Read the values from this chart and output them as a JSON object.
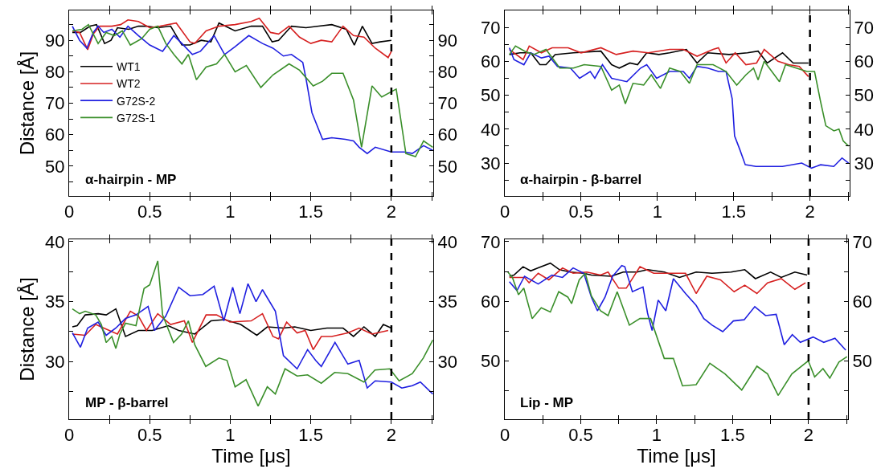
{
  "chart_data": [
    {
      "type": "line",
      "ylabel": "Distance [Å]",
      "annotations": [
        "α-hairpin - MP"
      ],
      "legend": "left",
      "grid": false,
      "xlim": [
        0,
        2.26
      ],
      "xticks": [
        0,
        {
          "value": 0.25,
          "label": null
        },
        0.5,
        {
          "value": 0.75,
          "label": null
        },
        1,
        {
          "value": 1.25,
          "label": null
        },
        1.5,
        {
          "value": 1.75,
          "label": null
        },
        2,
        {
          "value": 2.25,
          "label": null
        }
      ],
      "ylim": [
        40.5,
        99.5
      ],
      "yticks": [
        {
          "value": 45,
          "label": null
        },
        50,
        {
          "value": 55,
          "label": null
        },
        60,
        {
          "value": 65,
          "label": null
        },
        70,
        {
          "value": 75,
          "label": null
        },
        80,
        {
          "value": 85,
          "label": null
        },
        90,
        {
          "value": 95,
          "label": null
        }
      ],
      "y2lim": [
        40.5,
        99.5
      ],
      "y2ticks": [
        {
          "value": 45,
          "label": null
        },
        50,
        {
          "value": 55,
          "label": null
        },
        60,
        {
          "value": 65,
          "label": null
        },
        70,
        {
          "value": 75,
          "label": null
        },
        80,
        {
          "value": 85,
          "label": null
        },
        90,
        {
          "value": 95,
          "label": null
        }
      ],
      "ref_lines": [
        {
          "axis": "x",
          "value": 2,
          "color": "#000000",
          "line_style": "dashed"
        }
      ],
      "series": [
        {
          "name": "WT1",
          "color": "#000000",
          "x": [
            0.02,
            0.07,
            0.13,
            0.17,
            0.22,
            0.26,
            0.3,
            0.37,
            0.43,
            0.48,
            0.55,
            0.63,
            0.7,
            0.75,
            0.82,
            0.88,
            0.93,
            1.03,
            1.13,
            1.2,
            1.26,
            1.3,
            1.38,
            1.47,
            1.55,
            1.63,
            1.72,
            1.77,
            1.82,
            1.88,
            1.93,
            2.0
          ],
          "values": [
            92.5,
            92.5,
            94.5,
            95,
            89,
            90,
            94,
            93.5,
            94.5,
            94.5,
            94,
            94.5,
            88.5,
            88.5,
            90,
            89.5,
            95.5,
            93,
            94.5,
            94.5,
            89.5,
            90,
            94.5,
            94,
            94.5,
            95,
            93.5,
            88.5,
            94.5,
            89,
            89.5,
            90
          ]
        },
        {
          "name": "WT2",
          "color": "#d62020",
          "x": [
            0.02,
            0.065,
            0.115,
            0.15,
            0.19,
            0.265,
            0.32,
            0.365,
            0.43,
            0.5,
            0.565,
            0.665,
            0.75,
            0.78,
            0.85,
            0.93,
            1.03,
            1.13,
            1.18,
            1.25,
            1.3,
            1.365,
            1.43,
            1.5,
            1.565,
            1.63,
            1.7,
            1.765,
            1.83,
            1.9,
            1.98,
            2.0
          ],
          "values": [
            93,
            92.5,
            87,
            92,
            94.5,
            94.5,
            95,
            96.5,
            96,
            94,
            94.5,
            95.5,
            89.5,
            89,
            93,
            94.5,
            95,
            96,
            97,
            92.5,
            92,
            94.5,
            91,
            89,
            90,
            89.5,
            94.5,
            91.5,
            91,
            87.5,
            84.5,
            86.5
          ]
        },
        {
          "name": "G72S-2",
          "color": "#1f1fe0",
          "x": [
            0.02,
            0.065,
            0.11,
            0.15,
            0.18,
            0.215,
            0.265,
            0.315,
            0.365,
            0.43,
            0.5,
            0.58,
            0.65,
            0.7,
            0.765,
            0.815,
            0.9,
            0.965,
            1.03,
            1.115,
            1.2,
            1.265,
            1.33,
            1.38,
            1.45,
            1.473,
            1.507,
            1.573,
            1.63,
            1.715,
            1.765,
            1.8,
            1.85,
            1.9,
            2.0,
            2.08,
            2.13,
            2.2,
            2.257
          ],
          "values": [
            94.5,
            90,
            87.5,
            92.5,
            94.5,
            92.5,
            93.5,
            91,
            94.5,
            91.5,
            88.5,
            86.5,
            91.5,
            89,
            85.5,
            86.5,
            91.5,
            85.5,
            88,
            91.5,
            89,
            87.5,
            85,
            85.5,
            83,
            77,
            67,
            58.5,
            59,
            58.5,
            58,
            56,
            54,
            56,
            54.5,
            54.5,
            54,
            56.5,
            55
          ]
        },
        {
          "name": "G72S-1",
          "color": "#3a8f2a",
          "x": [
            0.02,
            0.08,
            0.12,
            0.18,
            0.23,
            0.28,
            0.33,
            0.38,
            0.45,
            0.5,
            0.55,
            0.6,
            0.65,
            0.7,
            0.74,
            0.79,
            0.85,
            0.915,
            0.965,
            1.03,
            1.1,
            1.19,
            1.265,
            1.365,
            1.43,
            1.515,
            1.573,
            1.63,
            1.7,
            1.765,
            1.815,
            1.88,
            1.94,
            2.03,
            2.09,
            2.15,
            2.2,
            2.257
          ],
          "values": [
            93,
            93.5,
            95,
            89,
            92.5,
            91.5,
            93,
            88.5,
            90.5,
            93.5,
            94.5,
            89,
            85.5,
            82.5,
            85.5,
            77.5,
            81.5,
            82.5,
            85.5,
            80,
            82,
            75,
            79,
            82.5,
            80.5,
            75.5,
            77,
            79.5,
            79.5,
            71,
            56,
            75.5,
            72,
            74.5,
            54,
            53,
            58,
            56
          ]
        }
      ]
    },
    {
      "type": "line",
      "annotations": [
        "α-hairpin - β-barrel"
      ],
      "legend": false,
      "grid": false,
      "xlim": [
        0,
        2.26
      ],
      "xticks": [
        0,
        {
          "value": 0.25,
          "label": null
        },
        0.5,
        {
          "value": 0.75,
          "label": null
        },
        1,
        {
          "value": 1.25,
          "label": null
        },
        1.5,
        {
          "value": 1.75,
          "label": null
        },
        2,
        {
          "value": 2.25,
          "label": null
        }
      ],
      "ylim": [
        20.3,
        75
      ],
      "yticks": [
        {
          "value": 25,
          "label": null
        },
        30,
        {
          "value": 35,
          "label": null
        },
        40,
        {
          "value": 45,
          "label": null
        },
        50,
        {
          "value": 55,
          "label": null
        },
        60,
        {
          "value": 65,
          "label": null
        },
        70
      ],
      "y2lim": [
        20.3,
        75
      ],
      "y2ticks": [
        {
          "value": 25,
          "label": null
        },
        30,
        {
          "value": 35,
          "label": null
        },
        40,
        {
          "value": 45,
          "label": null
        },
        50,
        {
          "value": 55,
          "label": null
        },
        60,
        {
          "value": 65,
          "label": null
        },
        70
      ],
      "ref_lines": [
        {
          "axis": "x",
          "value": 2,
          "color": "#000000",
          "line_style": "dashed"
        }
      ],
      "series": [
        {
          "color": "#000000",
          "x": [
            0.03,
            0.1,
            0.17,
            0.23,
            0.27,
            0.33,
            0.45,
            0.63,
            0.7,
            0.75,
            0.82,
            0.87,
            0.93,
            1.01,
            1.08,
            1.19,
            1.26,
            1.33,
            1.47,
            1.59,
            1.66,
            1.72,
            1.82,
            1.89,
            1.99
          ],
          "values": [
            62,
            62.5,
            62.5,
            59,
            59,
            62,
            62.5,
            63,
            59,
            58,
            59.5,
            59,
            62.5,
            62,
            62.5,
            63.5,
            59.5,
            62.5,
            62,
            62.5,
            63,
            59.5,
            62.5,
            59.5,
            59.5
          ]
        },
        {
          "color": "#d62020",
          "x": [
            0.03,
            0.12,
            0.16,
            0.24,
            0.31,
            0.415,
            0.5,
            0.63,
            0.73,
            0.84,
            0.94,
            1.08,
            1.17,
            1.26,
            1.365,
            1.4,
            1.45,
            1.51,
            1.58,
            1.65,
            1.7,
            1.79,
            1.86,
            1.93,
            1.99
          ],
          "values": [
            63.5,
            60.5,
            64.5,
            62.5,
            64,
            64,
            62.5,
            64,
            62,
            63,
            62.5,
            63.5,
            63.5,
            61.5,
            63.5,
            64,
            59.5,
            62.5,
            59,
            59.5,
            63.5,
            60,
            59,
            58.5,
            55.5
          ]
        },
        {
          "color": "#1f1fe0",
          "x": [
            0.03,
            0.06,
            0.125,
            0.17,
            0.24,
            0.29,
            0.345,
            0.43,
            0.49,
            0.56,
            0.59,
            0.64,
            0.7,
            0.8,
            0.89,
            0.93,
            0.995,
            1.08,
            1.17,
            1.21,
            1.26,
            1.33,
            1.4,
            1.45,
            1.49,
            1.506,
            1.54,
            1.576,
            1.646,
            1.82,
            1.946,
            2.01,
            2.07,
            2.156,
            2.21,
            2.253
          ],
          "values": [
            64,
            60.5,
            59,
            62.5,
            61,
            61.5,
            58.5,
            58,
            55,
            57,
            55,
            59,
            55,
            54,
            58,
            59,
            55,
            57,
            57,
            55,
            58.5,
            58,
            57,
            57,
            49,
            38,
            34,
            29.5,
            29,
            29,
            30,
            28.5,
            29.5,
            29,
            31.5,
            30
          ]
        },
        {
          "color": "#3a8f2a",
          "x": [
            0.03,
            0.07,
            0.13,
            0.19,
            0.27,
            0.36,
            0.45,
            0.52,
            0.63,
            0.7,
            0.75,
            0.79,
            0.84,
            0.91,
            0.96,
            1.02,
            1.08,
            1.15,
            1.21,
            1.26,
            1.365,
            1.45,
            1.52,
            1.58,
            1.63,
            1.66,
            1.7,
            1.8,
            1.84,
            1.91,
            1.98,
            2.03,
            2.07,
            2.104,
            2.157,
            2.19,
            2.218,
            2.253
          ],
          "values": [
            62,
            64.5,
            63,
            62,
            63.5,
            58,
            58,
            59,
            58.5,
            51.5,
            53,
            47.5,
            53.5,
            53,
            56,
            52,
            58,
            57,
            53.5,
            59,
            59,
            57,
            53,
            56,
            58,
            54.5,
            60,
            54,
            59,
            58,
            57,
            57,
            48,
            41,
            39.5,
            40,
            36.5,
            35
          ]
        }
      ]
    },
    {
      "type": "line",
      "ylabel": "Distance [Å]",
      "xlabel": "Time [μs]",
      "annotations": [
        "MP - β-barrel"
      ],
      "legend": false,
      "grid": false,
      "xlim": [
        0,
        2.26
      ],
      "xticks": [
        0,
        {
          "value": 0.25,
          "label": null
        },
        0.5,
        {
          "value": 0.75,
          "label": null
        },
        1,
        {
          "value": 1.25,
          "label": null
        },
        1.5,
        {
          "value": 1.75,
          "label": null
        },
        2,
        {
          "value": 2.25,
          "label": null
        }
      ],
      "ylim": [
        25.2,
        40.2
      ],
      "yticks": [
        {
          "value": 27.5,
          "label": null
        },
        30,
        {
          "value": 32.5,
          "label": null
        },
        35,
        {
          "value": 37.5,
          "label": null
        },
        40
      ],
      "y2lim": [
        25.2,
        40.2
      ],
      "y2ticks": [
        {
          "value": 27.5,
          "label": null
        },
        30,
        {
          "value": 32.5,
          "label": null
        },
        35,
        {
          "value": 37.5,
          "label": null
        },
        40
      ],
      "ref_lines": [
        {
          "axis": "x",
          "value": 2,
          "color": "#000000",
          "line_style": "dashed"
        }
      ],
      "series": [
        {
          "color": "#000000",
          "x": [
            0.02,
            0.05,
            0.1,
            0.18,
            0.23,
            0.29,
            0.35,
            0.43,
            0.515,
            0.615,
            0.68,
            0.78,
            0.88,
            0.965,
            1.065,
            1.165,
            1.23,
            1.33,
            1.4,
            1.5,
            1.6,
            1.7,
            1.765,
            1.83,
            1.9,
            1.95,
            2.0
          ],
          "values": [
            32.9,
            33,
            33.9,
            34,
            33.9,
            34.4,
            32.1,
            32.6,
            32.6,
            33,
            32.6,
            32.3,
            33.4,
            33.5,
            33.1,
            32.2,
            32.9,
            32.8,
            32.9,
            32.6,
            32.8,
            32.8,
            32.1,
            32.9,
            32.1,
            33.1,
            32.8
          ]
        },
        {
          "color": "#d62020",
          "x": [
            0.02,
            0.1,
            0.165,
            0.215,
            0.3,
            0.38,
            0.43,
            0.48,
            0.55,
            0.63,
            0.715,
            0.765,
            0.85,
            0.915,
            0.998,
            1.13,
            1.2,
            1.265,
            1.3,
            1.35,
            1.415,
            1.465,
            1.515,
            1.565,
            1.63,
            1.73,
            1.8,
            1.88,
            1.98
          ],
          "values": [
            32.3,
            32.2,
            33.1,
            32.8,
            32.3,
            34.2,
            33.8,
            32.6,
            34,
            33.1,
            33.4,
            31.6,
            33.9,
            33.9,
            33.3,
            33.4,
            34,
            32.1,
            31.9,
            33.3,
            32.4,
            32.6,
            31,
            32.1,
            32.1,
            32.4,
            32.8,
            32.3,
            32.6
          ]
        },
        {
          "color": "#1f1fe0",
          "x": [
            0.02,
            0.07,
            0.115,
            0.18,
            0.23,
            0.29,
            0.35,
            0.415,
            0.49,
            0.53,
            0.6,
            0.68,
            0.75,
            0.83,
            0.9,
            0.96,
            1.015,
            1.06,
            1.11,
            1.16,
            1.2,
            1.28,
            1.33,
            1.415,
            1.48,
            1.53,
            1.565,
            1.65,
            1.73,
            1.8,
            1.85,
            1.9,
            2.0,
            2.065,
            2.13,
            2.18,
            2.257
          ],
          "values": [
            32.4,
            31.2,
            32.8,
            33.3,
            32.2,
            32.8,
            33.6,
            33.9,
            34.6,
            32.6,
            33.8,
            36.2,
            35.5,
            35.6,
            36.3,
            33.4,
            36.2,
            34,
            36.5,
            35,
            36,
            34.2,
            30.5,
            29.4,
            31,
            30.1,
            29.6,
            31.6,
            29.8,
            30.1,
            27.8,
            28.4,
            28.3,
            27.8,
            28,
            28.3,
            27.3
          ]
        },
        {
          "color": "#3a8f2a",
          "x": [
            0.02,
            0.065,
            0.1,
            0.165,
            0.2,
            0.23,
            0.265,
            0.29,
            0.315,
            0.35,
            0.415,
            0.465,
            0.5,
            0.55,
            0.58,
            0.648,
            0.698,
            0.74,
            0.78,
            0.848,
            0.93,
            0.98,
            1.03,
            1.098,
            1.173,
            1.23,
            1.28,
            1.34,
            1.415,
            1.48,
            1.565,
            1.648,
            1.73,
            1.83,
            1.898,
            1.99,
            2.048,
            2.13,
            2.198,
            2.257
          ],
          "values": [
            34.4,
            34,
            34.2,
            33.9,
            33.1,
            31.6,
            32.1,
            31.1,
            32.3,
            33.2,
            33,
            36.1,
            36.4,
            38.4,
            33.9,
            31.6,
            32.3,
            33.4,
            31.4,
            29.6,
            30.3,
            30.1,
            27.9,
            28.5,
            26.3,
            27.9,
            27.3,
            29.4,
            28.8,
            28.9,
            28.2,
            29.1,
            29,
            28.3,
            29.3,
            29.4,
            28.4,
            29,
            30.3,
            31.8
          ]
        }
      ]
    },
    {
      "type": "line",
      "xlabel": "Time [μs]",
      "annotations": [
        "Lip - MP"
      ],
      "legend": false,
      "grid": false,
      "xlim": [
        0,
        2.26
      ],
      "xticks": [
        0,
        {
          "value": 0.25,
          "label": null
        },
        0.5,
        {
          "value": 0.75,
          "label": null
        },
        1,
        {
          "value": 1.25,
          "label": null
        },
        1.5,
        {
          "value": 1.75,
          "label": null
        },
        2,
        {
          "value": 2.25,
          "label": null
        }
      ],
      "ylim": [
        40.2,
        70.4
      ],
      "yticks": [
        {
          "value": 45,
          "label": null
        },
        50,
        {
          "value": 55,
          "label": null
        },
        60,
        {
          "value": 65,
          "label": null
        },
        70
      ],
      "y2lim": [
        40.2,
        70.4
      ],
      "y2ticks": [
        {
          "value": 45,
          "label": null
        },
        50,
        {
          "value": 55,
          "label": null
        },
        60,
        {
          "value": 65,
          "label": null
        },
        70
      ],
      "ref_lines": [
        {
          "axis": "x",
          "value": 2,
          "color": "#000000",
          "line_style": "dashed"
        }
      ],
      "series": [
        {
          "color": "#000000",
          "x": [
            0.03,
            0.06,
            0.12,
            0.17,
            0.22,
            0.3,
            0.36,
            0.43,
            0.52,
            0.57,
            0.7,
            0.78,
            0.87,
            0.94,
            1.05,
            1.15,
            1.26,
            1.365,
            1.49,
            1.58,
            1.65,
            1.75,
            1.82,
            1.91,
            1.99
          ],
          "values": [
            64.2,
            64.4,
            65.8,
            65.1,
            65.6,
            66.4,
            65.3,
            64.9,
            64.7,
            64.4,
            64.2,
            64.9,
            64.9,
            65.3,
            64.9,
            64,
            64.9,
            64.7,
            64.9,
            65.3,
            63.8,
            64.9,
            64,
            64.9,
            64.4
          ]
        },
        {
          "color": "#d62020",
          "x": [
            0.03,
            0.13,
            0.16,
            0.22,
            0.29,
            0.38,
            0.45,
            0.54,
            0.63,
            0.68,
            0.75,
            0.8,
            0.89,
            0.98,
            1.05,
            1.19,
            1.26,
            1.33,
            1.42,
            1.51,
            1.58,
            1.66,
            1.73,
            1.82,
            1.91,
            1.98
          ],
          "values": [
            64,
            64,
            63.1,
            64.7,
            63.6,
            65.6,
            64.7,
            64.9,
            64.4,
            64.9,
            62.2,
            62.2,
            65.8,
            64.7,
            64.7,
            64.7,
            61.3,
            64.2,
            63.6,
            61.6,
            62.7,
            61.3,
            63.1,
            63.8,
            62,
            63.1
          ]
        },
        {
          "color": "#1f1fe0",
          "x": [
            0.03,
            0.08,
            0.13,
            0.22,
            0.31,
            0.38,
            0.45,
            0.52,
            0.57,
            0.61,
            0.66,
            0.71,
            0.77,
            0.79,
            0.84,
            0.91,
            0.94,
            0.97,
            1.01,
            1.06,
            1.11,
            1.19,
            1.26,
            1.31,
            1.365,
            1.435,
            1.505,
            1.576,
            1.646,
            1.717,
            1.787,
            1.84,
            1.893,
            1.946,
            2.03,
            2.1,
            2.174,
            2.245
          ],
          "values": [
            63.3,
            61.8,
            64.2,
            62.9,
            64.4,
            64,
            65.6,
            64.7,
            60.7,
            58.4,
            60.7,
            64.2,
            66,
            65.8,
            61.6,
            62.4,
            58,
            55.1,
            60.2,
            58.4,
            63.8,
            61.3,
            59.3,
            57.1,
            56,
            54.9,
            56.7,
            56.9,
            59.1,
            57.6,
            57.8,
            52.7,
            54.4,
            53.1,
            54,
            53.1,
            53.8,
            51.8
          ]
        },
        {
          "color": "#3a8f2a",
          "x": [
            0.02,
            0.05,
            0.09,
            0.125,
            0.18,
            0.24,
            0.3,
            0.355,
            0.415,
            0.44,
            0.49,
            0.53,
            0.57,
            0.63,
            0.68,
            0.74,
            0.82,
            0.89,
            0.96,
            1.05,
            1.11,
            1.17,
            1.26,
            1.35,
            1.45,
            1.56,
            1.66,
            1.73,
            1.8,
            1.89,
            1.998,
            2.04,
            2.095,
            2.14,
            2.2,
            2.253
          ],
          "values": [
            64.9,
            64,
            61.1,
            62.2,
            57.1,
            58.9,
            58.2,
            61.6,
            60.7,
            59.6,
            63.6,
            64.7,
            60.9,
            58.4,
            57.6,
            61.6,
            56,
            57.1,
            57.1,
            50.4,
            50.4,
            45.8,
            46,
            49.6,
            47.8,
            45.1,
            49.1,
            47.8,
            44.2,
            47.8,
            50,
            47.3,
            48.7,
            47.1,
            49.8,
            50.7
          ]
        }
      ]
    }
  ]
}
